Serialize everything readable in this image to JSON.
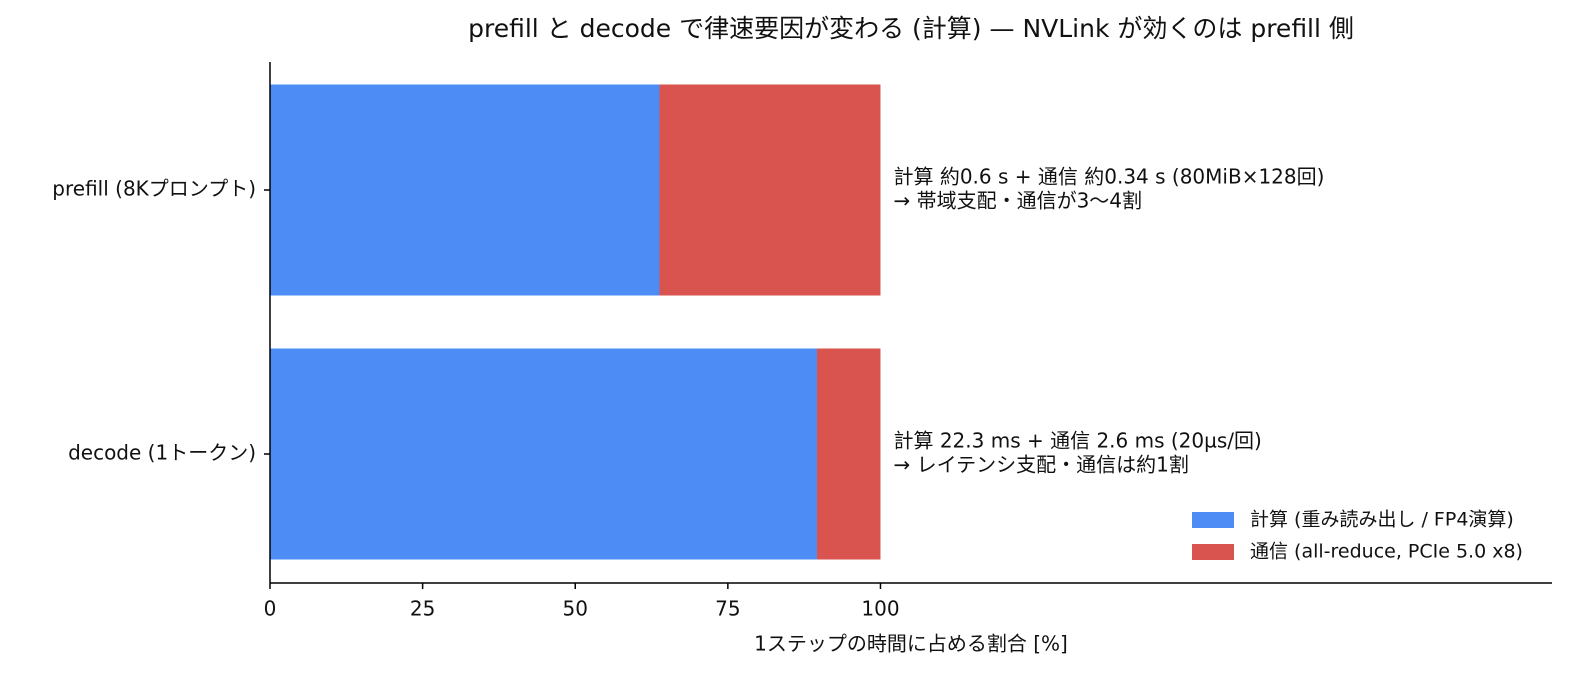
{
  "chart_data": {
    "type": "barh_stacked",
    "title": "prefill と decode で律速要因が変わる (計算) — NVLink が効くのは prefill 側",
    "xlabel": "1ステップの時間に占める割合 [%]",
    "categories": [
      "prefill (8Kプロンプト)",
      "decode (1トークン)"
    ],
    "series": [
      {
        "name": "計算 (重み読み出し / FP4演算)",
        "color": "#4e8cf5",
        "values": [
          63.8,
          89.6
        ]
      },
      {
        "name": "通信 (all-reduce, PCIe 5.0 x8)",
        "color": "#d9534f",
        "values": [
          36.2,
          10.4
        ]
      }
    ],
    "annotations": [
      {
        "lines": [
          "計算 約0.6 s + 通信 約0.34 s (80MiB×128回)",
          "→ 帯域支配・通信が3〜4割"
        ]
      },
      {
        "lines": [
          "計算 22.3 ms + 通信 2.6 ms (20µs/回)",
          "→ レイテンシ支配・通信は約1割"
        ]
      }
    ],
    "xlim": [
      0,
      210
    ],
    "xticks": [
      0,
      25,
      50,
      75,
      100
    ],
    "legend": "lower right"
  }
}
